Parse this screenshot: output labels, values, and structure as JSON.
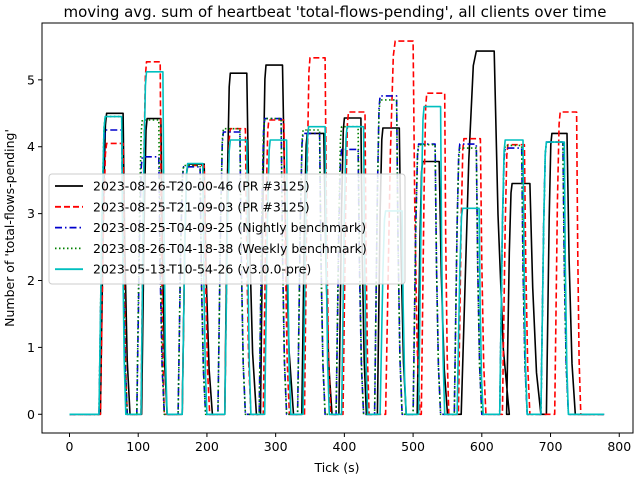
{
  "chart_data": {
    "type": "line",
    "title": "moving avg. sum of heartbeat 'total-flows-pending', all clients over time",
    "xlabel": "Tick (s)",
    "ylabel": "Number of 'total-flows-pending'",
    "xlim": [
      -40,
      820
    ],
    "ylim": [
      -0.28,
      5.85
    ],
    "xticks": [
      0,
      100,
      200,
      300,
      400,
      500,
      600,
      700,
      800
    ],
    "yticks": [
      0,
      1,
      2,
      3,
      4,
      5
    ],
    "grid": false,
    "legend_position": "center-left",
    "series": [
      {
        "name": "2023-08-26-T20-00-46 (PR #3125)",
        "color": "#000000",
        "dash": "",
        "cycles": [
          [
            45,
            54,
            4.5,
            78,
            88
          ],
          [
            105,
            113,
            4.42,
            133,
            142
          ],
          [
            164,
            172,
            3.74,
            196,
            208
          ],
          [
            226,
            234,
            5.1,
            258,
            272
          ],
          [
            278,
            286,
            5.22,
            310,
            326
          ],
          [
            338,
            346,
            4.2,
            370,
            382
          ],
          [
            392,
            400,
            4.43,
            424,
            432
          ],
          [
            448,
            456,
            4.28,
            480,
            490
          ],
          [
            506,
            514,
            3.78,
            538,
            550
          ],
          [
            570,
            592,
            5.43,
            618,
            640
          ],
          [
            636,
            644,
            3.45,
            670,
            686
          ],
          [
            694,
            702,
            4.2,
            724,
            736
          ]
        ]
      },
      {
        "name": "2023-08-25-T21-09-03 (PR #3125)",
        "color": "#ff0000",
        "dash": "6,3",
        "cycles": [
          [
            45,
            54,
            4.05,
            78,
            84
          ],
          [
            104,
            112,
            5.27,
            132,
            138
          ],
          [
            164,
            172,
            3.72,
            196,
            204
          ],
          [
            226,
            234,
            4.27,
            256,
            264
          ],
          [
            282,
            290,
            4.4,
            312,
            320
          ],
          [
            342,
            350,
            5.33,
            372,
            380
          ],
          [
            398,
            406,
            4.52,
            430,
            436
          ],
          [
            460,
            474,
            5.58,
            500,
            510
          ],
          [
            512,
            520,
            4.8,
            546,
            552
          ],
          [
            566,
            574,
            4.12,
            598,
            606
          ],
          [
            630,
            638,
            4.03,
            662,
            670
          ],
          [
            706,
            714,
            4.52,
            738,
            744
          ]
        ]
      },
      {
        "name": "2023-08-25-T04-09-25 (Nightly benchmark)",
        "color": "#0000cc",
        "dash": "7,3,1.5,3",
        "cycles": [
          [
            43,
            52,
            4.25,
            76,
            84
          ],
          [
            98,
            106,
            3.85,
            130,
            138
          ],
          [
            158,
            166,
            3.7,
            190,
            198
          ],
          [
            216,
            224,
            4.22,
            248,
            256
          ],
          [
            276,
            284,
            4.42,
            308,
            316
          ],
          [
            332,
            340,
            4.2,
            364,
            372
          ],
          [
            388,
            396,
            3.96,
            420,
            428
          ],
          [
            444,
            452,
            4.76,
            476,
            484
          ],
          [
            500,
            508,
            4.04,
            532,
            540
          ],
          [
            560,
            568,
            4.04,
            592,
            600
          ],
          [
            626,
            634,
            3.98,
            658,
            666
          ],
          [
            686,
            694,
            4.07,
            718,
            726
          ]
        ]
      },
      {
        "name": "2023-08-26-T04-18-38 (Weekly benchmark)",
        "color": "#008000",
        "dash": "1.5,2.5",
        "cycles": [
          [
            43,
            52,
            4.45,
            76,
            84
          ],
          [
            98,
            106,
            4.4,
            130,
            138
          ],
          [
            158,
            166,
            3.72,
            190,
            198
          ],
          [
            216,
            224,
            4.27,
            248,
            256
          ],
          [
            276,
            284,
            4.42,
            308,
            316
          ],
          [
            332,
            340,
            4.25,
            364,
            372
          ],
          [
            388,
            396,
            4.3,
            420,
            428
          ],
          [
            444,
            452,
            4.7,
            476,
            484
          ],
          [
            500,
            508,
            4.03,
            532,
            540
          ],
          [
            560,
            568,
            3.98,
            592,
            600
          ],
          [
            626,
            634,
            4.02,
            658,
            666
          ],
          [
            686,
            694,
            4.07,
            718,
            726
          ]
        ]
      },
      {
        "name": "2023-05-13-T10-54-26 (v3.0.0-pre)",
        "color": "#00bfbf",
        "dash": "",
        "cycles": [
          [
            43,
            52,
            4.45,
            76,
            82
          ],
          [
            104,
            112,
            5.12,
            136,
            142
          ],
          [
            164,
            172,
            3.75,
            194,
            200
          ],
          [
            226,
            234,
            4.1,
            258,
            264
          ],
          [
            284,
            292,
            4.1,
            316,
            322
          ],
          [
            340,
            348,
            4.3,
            372,
            378
          ],
          [
            396,
            404,
            4.3,
            428,
            434
          ],
          [
            452,
            460,
            3.04,
            484,
            490
          ],
          [
            508,
            516,
            4.6,
            540,
            546
          ],
          [
            564,
            572,
            3.08,
            596,
            602
          ],
          [
            626,
            634,
            4.1,
            660,
            666
          ],
          [
            686,
            694,
            4.07,
            720,
            726
          ]
        ]
      }
    ]
  }
}
